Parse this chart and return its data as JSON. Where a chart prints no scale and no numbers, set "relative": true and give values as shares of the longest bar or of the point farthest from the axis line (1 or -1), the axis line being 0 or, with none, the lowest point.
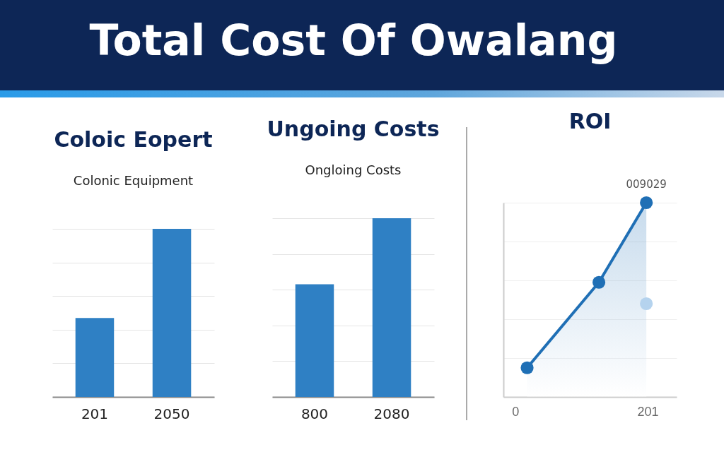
{
  "chart_data": [
    {
      "type": "bar",
      "title": "Coloic Eopert",
      "subtitle": "Colonic Equipment",
      "annotations": [
        "Total Cost Of Owalang"
      ],
      "categories": [
        "201",
        "2050"
      ],
      "values": [
        0.47,
        1
      ],
      "color": "#2f80c4",
      "relative": true,
      "grid": "y"
    },
    {
      "type": "bar",
      "title": "Ungoing Costs",
      "subtitle": "Ongloing Costs",
      "categories": [
        "800",
        "2080"
      ],
      "values": [
        0.63,
        1
      ],
      "color": "#2f80c4",
      "relative": true,
      "grid": "y"
    },
    {
      "type": "line",
      "title": "ROI",
      "annotations": [
        {
          "text": "009029",
          "x": 199,
          "y": 1
        }
      ],
      "xlim": [
        -18,
        245
      ],
      "xticks": [
        0,
        201
      ],
      "relative": true,
      "grid": "y",
      "series": [
        {
          "type": "area",
          "color": "#1f6fb5",
          "marker": "circle",
          "x": [
            18,
            127,
            199
          ],
          "values": [
            0.15,
            0.59,
            1
          ]
        },
        {
          "type": "scatter",
          "color": "#b5d3ee",
          "marker": "circle",
          "x": [
            199
          ],
          "values": [
            0.48
          ]
        }
      ]
    }
  ]
}
